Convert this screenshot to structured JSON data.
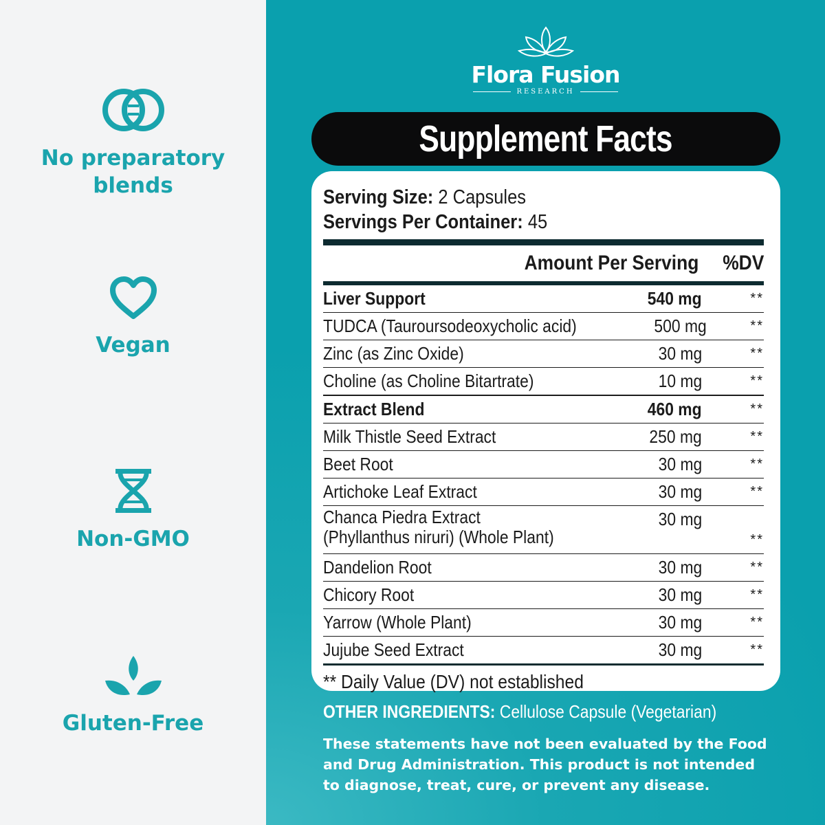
{
  "features": [
    {
      "icon": "interlocking-rings-icon",
      "label_line1": "No preparatory",
      "label_line2": "blends"
    },
    {
      "icon": "heart-icon",
      "label_line1": "Vegan"
    },
    {
      "icon": "dna-icon",
      "label_line1": "Non-GMO"
    },
    {
      "icon": "leaves-icon",
      "label_line1": "Gluten-Free"
    }
  ],
  "brand": {
    "name": "Flora Fusion",
    "subtitle": "RESEARCH",
    "logo_icon": "lotus-icon"
  },
  "facts": {
    "title": "Supplement Facts",
    "serving_size_label": "Serving Size:",
    "serving_size_value": "2 Capsules",
    "servings_per_container_label": "Servings Per Container:",
    "servings_per_container_value": "45",
    "header_amount": "Amount Per Serving",
    "header_dv": "%DV",
    "rows": [
      {
        "name": "Liver Support",
        "amount": "540 mg",
        "dv": "**"
      },
      {
        "name": "TUDCA (Tauroursodeoxycholic acid)",
        "amount": "500 mg",
        "dv": "**"
      },
      {
        "name": "Zinc (as Zinc Oxide)",
        "amount": "30 mg",
        "dv": "**"
      },
      {
        "name": "Choline (as Choline Bitartrate)",
        "amount": "10 mg",
        "dv": "**"
      },
      {
        "name": "Extract Blend",
        "amount": "460 mg",
        "dv": "**"
      },
      {
        "name": "Milk Thistle Seed Extract",
        "amount": "250 mg",
        "dv": "**"
      },
      {
        "name": "Beet Root",
        "amount": "30 mg",
        "dv": "**"
      },
      {
        "name": "Artichoke Leaf Extract",
        "amount": "30 mg",
        "dv": "**"
      },
      {
        "name": "Chanca Piedra Extract",
        "name_line2": "(Phyllanthus niruri) (Whole Plant)",
        "amount": "30 mg",
        "dv": "**"
      },
      {
        "name": "Dandelion Root",
        "amount": "30 mg",
        "dv": "**"
      },
      {
        "name": "Chicory Root",
        "amount": "30 mg",
        "dv": "**"
      },
      {
        "name": "Yarrow (Whole Plant)",
        "amount": "30 mg",
        "dv": "**"
      },
      {
        "name": "Jujube Seed Extract",
        "amount": "30 mg",
        "dv": "**"
      }
    ],
    "footnote": "** Daily Value (DV) not established"
  },
  "other_ingredients": {
    "label": "OTHER INGREDIENTS:",
    "value": "Cellulose Capsule (Vegetarian)"
  },
  "disclaimer": {
    "line1": "These statements have not been evaluated by the Food",
    "line2": "and Drug Administration. This product is not intended",
    "line3": "to diagnose, treat, cure, or prevent any disease."
  },
  "colors": {
    "accent": "#1aa4ad",
    "panel": "#0aa0ae",
    "title_bg": "#0b0b0c",
    "rule": "#0d2b30"
  }
}
